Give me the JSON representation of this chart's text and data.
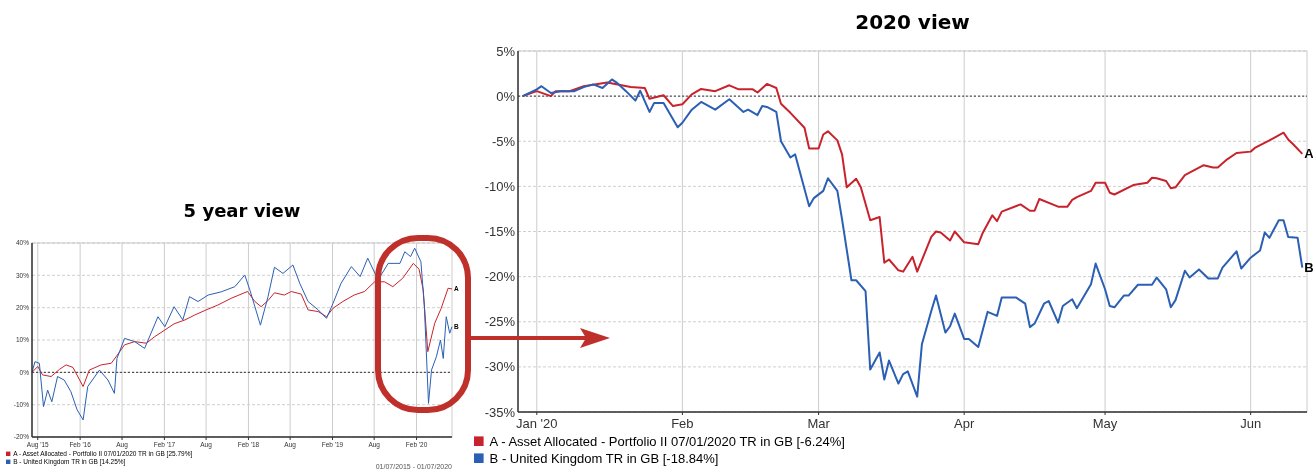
{
  "chart_data": [
    {
      "type": "line",
      "title": "5 year view",
      "xlim": [
        "2015-07-07",
        "2020-07-04"
      ],
      "ylim": [
        -20,
        40
      ],
      "xticks": [
        {
          "value": "2015-08-01",
          "label": "Aug '15"
        },
        {
          "value": "2016-02-01",
          "label": "Feb '16"
        },
        {
          "value": "2016-08-01",
          "label": "Aug"
        },
        {
          "value": "2017-02-01",
          "label": "Feb '17"
        },
        {
          "value": "2017-08-01",
          "label": "Aug"
        },
        {
          "value": "2018-02-01",
          "label": "Feb '18"
        },
        {
          "value": "2018-08-01",
          "label": "Aug"
        },
        {
          "value": "2019-02-01",
          "label": "Feb '19"
        },
        {
          "value": "2019-08-01",
          "label": "Aug"
        },
        {
          "value": "2020-02-01",
          "label": "Feb '20"
        }
      ],
      "yticks": [
        {
          "value": -20,
          "label": "-20%"
        },
        {
          "value": -10,
          "label": "-10%"
        },
        {
          "value": 0,
          "label": "0%"
        },
        {
          "value": 10,
          "label": "10%"
        },
        {
          "value": 20,
          "label": "20%"
        },
        {
          "value": 30,
          "label": "30%"
        },
        {
          "value": 40,
          "label": "40%"
        }
      ],
      "grid": true,
      "legend": "bottom",
      "line_style": "solid",
      "ref_lines": [
        {
          "axis": "y",
          "value": 0,
          "color": "#333333",
          "line_style": "dotted"
        }
      ],
      "annotations": [
        {
          "text": "A",
          "x": "2020-07-04",
          "y": 25.8
        },
        {
          "text": "B",
          "x": "2020-07-04",
          "y": 14.1
        },
        "01/07/2015 - 01/07/2020"
      ],
      "series": [
        {
          "name": "A - Asset Allocated - Portfolio II 07/01/2020 TR in GB [25.79%]",
          "color": "#c8232c",
          "x": [
            "2015-07-07",
            "2015-08-01",
            "2015-08-22",
            "2015-09-28",
            "2015-11-03",
            "2015-12-02",
            "2016-01-01",
            "2016-02-14",
            "2016-03-12",
            "2016-05-02",
            "2016-06-15",
            "2016-07-06",
            "2016-08-12",
            "2016-09-25",
            "2016-11-15",
            "2016-12-20",
            "2017-02-03",
            "2017-03-15",
            "2017-05-01",
            "2017-06-12",
            "2017-08-01",
            "2017-09-21",
            "2017-11-18",
            "2018-01-28",
            "2018-03-01",
            "2018-03-28",
            "2018-04-27",
            "2018-05-25",
            "2018-07-07",
            "2018-08-06",
            "2018-09-18",
            "2018-10-18",
            "2018-12-01",
            "2019-01-06",
            "2019-02-03",
            "2019-03-18",
            "2019-05-06",
            "2019-06-20",
            "2019-08-03",
            "2019-09-15",
            "2019-10-21",
            "2019-12-03",
            "2020-01-18",
            "2020-02-12",
            "2020-03-01",
            "2020-03-21",
            "2020-04-20",
            "2020-05-18",
            "2020-06-17",
            "2020-07-04"
          ],
          "values": [
            0,
            1.8,
            -0.8,
            -1.3,
            0.9,
            2.3,
            1.5,
            -4.4,
            0.7,
            2.3,
            2.8,
            4.8,
            8.5,
            9.5,
            9.0,
            11.0,
            13.1,
            15.0,
            16.2,
            17.7,
            19.3,
            20.8,
            22.9,
            25.0,
            21.9,
            20.3,
            22.2,
            24.6,
            23.9,
            25.0,
            24.2,
            19.3,
            18.8,
            17.2,
            19.8,
            21.9,
            23.9,
            25.0,
            28.0,
            28.0,
            26.5,
            29.1,
            33.7,
            31.9,
            25.5,
            6.4,
            15.2,
            19.8,
            26.0,
            25.8
          ]
        },
        {
          "name": "B - United Kingdom TR in GB [14.25%]",
          "color": "#2b5fb4",
          "x": [
            "2015-07-07",
            "2015-07-20",
            "2015-08-08",
            "2015-08-26",
            "2015-09-13",
            "2015-10-01",
            "2015-10-26",
            "2015-11-24",
            "2015-12-23",
            "2016-01-19",
            "2016-02-14",
            "2016-03-05",
            "2016-04-25",
            "2016-06-01",
            "2016-06-29",
            "2016-07-10",
            "2016-08-12",
            "2016-09-25",
            "2016-11-07",
            "2017-01-04",
            "2017-02-03",
            "2017-03-15",
            "2017-04-22",
            "2017-05-21",
            "2017-06-27",
            "2017-08-10",
            "2017-10-06",
            "2017-12-04",
            "2018-01-16",
            "2018-02-07",
            "2018-03-01",
            "2018-03-25",
            "2018-04-27",
            "2018-05-25",
            "2018-07-01",
            "2018-08-13",
            "2018-09-12",
            "2018-10-18",
            "2018-12-01",
            "2019-01-06",
            "2019-02-03",
            "2019-03-10",
            "2019-04-24",
            "2019-06-01",
            "2019-07-04",
            "2019-08-18",
            "2019-10-01",
            "2019-11-21",
            "2019-12-12",
            "2020-01-06",
            "2020-01-24",
            "2020-02-20",
            "2020-03-06",
            "2020-03-24",
            "2020-04-06",
            "2020-04-27",
            "2020-05-15",
            "2020-05-27",
            "2020-06-09",
            "2020-06-24",
            "2020-07-04"
          ],
          "values": [
            0,
            3.3,
            2.8,
            -10.6,
            -5.5,
            -9.1,
            -1.3,
            -2.4,
            -6.0,
            -11.6,
            -14.7,
            -4.4,
            0.7,
            -2.4,
            -6.5,
            4.3,
            10.5,
            9.5,
            7.4,
            17.2,
            14.1,
            20.3,
            16.2,
            23.4,
            21.9,
            23.9,
            24.9,
            26.5,
            30.1,
            25.5,
            20.3,
            14.6,
            23.4,
            32.5,
            30.6,
            33.2,
            27.5,
            21.9,
            19.3,
            16.7,
            21.3,
            27.5,
            32.7,
            29.6,
            35.3,
            28.6,
            33.7,
            33.7,
            37.3,
            35.8,
            38.4,
            34.2,
            20.3,
            -9.6,
            0.7,
            4.8,
            10.0,
            4.3,
            17.2,
            12.1,
            14.1
          ]
        }
      ]
    },
    {
      "type": "line",
      "title": "2020 view",
      "xlim": [
        "2019-12-28",
        "2020-06-13"
      ],
      "ylim": [
        -35,
        5
      ],
      "xticks": [
        {
          "value": "2020-01-01",
          "label": "Jan '20"
        },
        {
          "value": "2020-02-01",
          "label": "Feb"
        },
        {
          "value": "2020-03-01",
          "label": "Mar"
        },
        {
          "value": "2020-04-01",
          "label": "Apr"
        },
        {
          "value": "2020-05-01",
          "label": "May"
        },
        {
          "value": "2020-06-01",
          "label": "Jun"
        }
      ],
      "yticks": [
        {
          "value": -35,
          "label": "-35%"
        },
        {
          "value": -30,
          "label": "-30%"
        },
        {
          "value": -25,
          "label": "-25%"
        },
        {
          "value": -20,
          "label": "-20%"
        },
        {
          "value": -15,
          "label": "-15%"
        },
        {
          "value": -10,
          "label": "-10%"
        },
        {
          "value": -5,
          "label": "-5%"
        },
        {
          "value": 0,
          "label": "0%"
        },
        {
          "value": 5,
          "label": "5%"
        }
      ],
      "grid": true,
      "legend": "bottom",
      "line_style": "solid",
      "ref_lines": [
        {
          "axis": "y",
          "value": 0,
          "color": "#333333",
          "line_style": "dotted"
        }
      ],
      "annotations": [
        {
          "text": "A",
          "x": "2020-06-12",
          "y": -6.4
        },
        {
          "text": "B",
          "x": "2020-06-12",
          "y": -19.0
        }
      ],
      "series": [
        {
          "name": "A - Asset Allocated - Portfolio II 07/01/2020 TR in GB [-6.24%]",
          "color": "#c8232c",
          "x": [
            "2019-12-29",
            "2020-01-01",
            "2020-01-04",
            "2020-01-05",
            "2020-01-08",
            "2020-01-11",
            "2020-01-16",
            "2020-01-21",
            "2020-01-24",
            "2020-01-25",
            "2020-01-28",
            "2020-01-30",
            "2020-02-01",
            "2020-02-03",
            "2020-02-05",
            "2020-02-08",
            "2020-02-11",
            "2020-02-13",
            "2020-02-16",
            "2020-02-17",
            "2020-02-19",
            "2020-02-21",
            "2020-02-22",
            "2020-02-24",
            "2020-02-27",
            "2020-02-28",
            "2020-03-01",
            "2020-03-02",
            "2020-03-03",
            "2020-03-05",
            "2020-03-06",
            "2020-03-07",
            "2020-03-09",
            "2020-03-10",
            "2020-03-12",
            "2020-03-14",
            "2020-03-15",
            "2020-03-16",
            "2020-03-18",
            "2020-03-19",
            "2020-03-21",
            "2020-03-22",
            "2020-03-25",
            "2020-03-26",
            "2020-03-27",
            "2020-03-29",
            "2020-03-30",
            "2020-04-01",
            "2020-04-04",
            "2020-04-05",
            "2020-04-07",
            "2020-04-08",
            "2020-04-09",
            "2020-04-13",
            "2020-04-15",
            "2020-04-16",
            "2020-04-17",
            "2020-04-21",
            "2020-04-23",
            "2020-04-24",
            "2020-04-25",
            "2020-04-28",
            "2020-04-29",
            "2020-05-01",
            "2020-05-02",
            "2020-05-03",
            "2020-05-07",
            "2020-05-10",
            "2020-05-11",
            "2020-05-12",
            "2020-05-14",
            "2020-05-15",
            "2020-05-16",
            "2020-05-18",
            "2020-05-22",
            "2020-05-24",
            "2020-05-25",
            "2020-05-27",
            "2020-05-29",
            "2020-06-01",
            "2020-06-02",
            "2020-06-05",
            "2020-06-08",
            "2020-06-09",
            "2020-06-10",
            "2020-06-12"
          ],
          "values": [
            0,
            0.55,
            0,
            0.55,
            0.55,
            1.1,
            1.5,
            1.0,
            0.9,
            -0.3,
            0.1,
            -1.1,
            -0.9,
            0.2,
            0.8,
            0.55,
            1.2,
            0.75,
            0.75,
            0.4,
            1.35,
            0.9,
            -0.85,
            -1.85,
            -3.5,
            -5.8,
            -5.8,
            -4.25,
            -3.9,
            -4.9,
            -6.45,
            -10.1,
            -9.15,
            -10.1,
            -13.75,
            -13.4,
            -18.45,
            -18.1,
            -19.3,
            -19.45,
            -17.8,
            -19.45,
            -15.6,
            -15.0,
            -15.1,
            -16.0,
            -15.0,
            -16.2,
            -16.4,
            -15.1,
            -13.2,
            -13.85,
            -12.8,
            -12.0,
            -12.7,
            -12.7,
            -11.4,
            -12.25,
            -12.25,
            -11.5,
            -11.2,
            -10.5,
            -9.6,
            -9.6,
            -10.7,
            -10.9,
            -9.85,
            -9.6,
            -9.05,
            -9.1,
            -9.4,
            -10.2,
            -10.1,
            -8.75,
            -7.65,
            -7.9,
            -7.9,
            -7.0,
            -6.3,
            -6.15,
            -5.7,
            -4.9,
            -4.05,
            -4.8,
            -5.3,
            -6.4
          ]
        },
        {
          "name": "B - United Kingdom TR in GB [-18.84%]",
          "color": "#2b5fb4",
          "x": [
            "2019-12-29",
            "2020-01-01",
            "2020-01-02",
            "2020-01-04",
            "2020-01-06",
            "2020-01-09",
            "2020-01-11",
            "2020-01-13",
            "2020-01-15",
            "2020-01-17",
            "2020-01-18",
            "2020-01-20",
            "2020-01-22",
            "2020-01-23",
            "2020-01-25",
            "2020-01-26",
            "2020-01-28",
            "2020-01-31",
            "2020-02-01",
            "2020-02-03",
            "2020-02-05",
            "2020-02-08",
            "2020-02-11",
            "2020-02-14",
            "2020-02-15",
            "2020-02-17",
            "2020-02-18",
            "2020-02-19",
            "2020-02-21",
            "2020-02-22",
            "2020-02-24",
            "2020-02-25",
            "2020-02-28",
            "2020-02-29",
            "2020-03-02",
            "2020-03-03",
            "2020-03-05",
            "2020-03-06",
            "2020-03-08",
            "2020-03-09",
            "2020-03-11",
            "2020-03-12",
            "2020-03-14",
            "2020-03-15",
            "2020-03-16",
            "2020-03-18",
            "2020-03-19",
            "2020-03-20",
            "2020-03-22",
            "2020-03-23",
            "2020-03-25",
            "2020-03-26",
            "2020-03-28",
            "2020-03-29",
            "2020-03-30",
            "2020-04-01",
            "2020-04-02",
            "2020-04-04",
            "2020-04-06",
            "2020-04-08",
            "2020-04-09",
            "2020-04-12",
            "2020-04-14",
            "2020-04-15",
            "2020-04-16",
            "2020-04-18",
            "2020-04-19",
            "2020-04-21",
            "2020-04-22",
            "2020-04-24",
            "2020-04-25",
            "2020-04-28",
            "2020-04-29",
            "2020-05-01",
            "2020-05-02",
            "2020-05-03",
            "2020-05-05",
            "2020-05-06",
            "2020-05-08",
            "2020-05-11",
            "2020-05-12",
            "2020-05-14",
            "2020-05-15",
            "2020-05-16",
            "2020-05-18",
            "2020-05-19",
            "2020-05-21",
            "2020-05-23",
            "2020-05-25",
            "2020-05-26",
            "2020-05-29",
            "2020-05-30",
            "2020-06-01",
            "2020-06-03",
            "2020-06-04",
            "2020-06-05",
            "2020-06-07",
            "2020-06-08",
            "2020-06-09",
            "2020-06-11",
            "2020-06-12"
          ],
          "values": [
            0,
            0.75,
            1.1,
            0.35,
            0.55,
            0.55,
            1.0,
            1.3,
            0.9,
            1.85,
            1.5,
            0.55,
            -0.5,
            0.6,
            -1.75,
            -0.75,
            -0.75,
            -3.45,
            -2.95,
            -1.5,
            -0.65,
            -1.5,
            -0.35,
            -1.75,
            -1.5,
            -2.1,
            -1.1,
            -1.2,
            -1.75,
            -5.0,
            -6.8,
            -6.45,
            -12.2,
            -11.3,
            -10.5,
            -9.1,
            -10.5,
            -13.65,
            -20.4,
            -20.4,
            -21.6,
            -30.3,
            -28.4,
            -31.4,
            -29.3,
            -31.85,
            -30.8,
            -30.5,
            -33.3,
            -27.5,
            -23.8,
            -22.1,
            -26.2,
            -25.5,
            -24.1,
            -26.9,
            -26.9,
            -27.8,
            -23.9,
            -24.35,
            -22.3,
            -22.3,
            -23.0,
            -25.6,
            -25.2,
            -23.0,
            -22.7,
            -25.1,
            -23.25,
            -22.5,
            -23.5,
            -20.85,
            -18.55,
            -21.4,
            -23.25,
            -23.4,
            -22.1,
            -22.1,
            -20.9,
            -20.9,
            -20.1,
            -21.4,
            -23.4,
            -22.6,
            -19.35,
            -20.1,
            -19.2,
            -20.2,
            -20.2,
            -19.0,
            -17.2,
            -19.1,
            -17.9,
            -17.1,
            -15.1,
            -15.7,
            -13.75,
            -13.75,
            -15.6,
            -15.7,
            -19.0
          ]
        }
      ]
    }
  ]
}
